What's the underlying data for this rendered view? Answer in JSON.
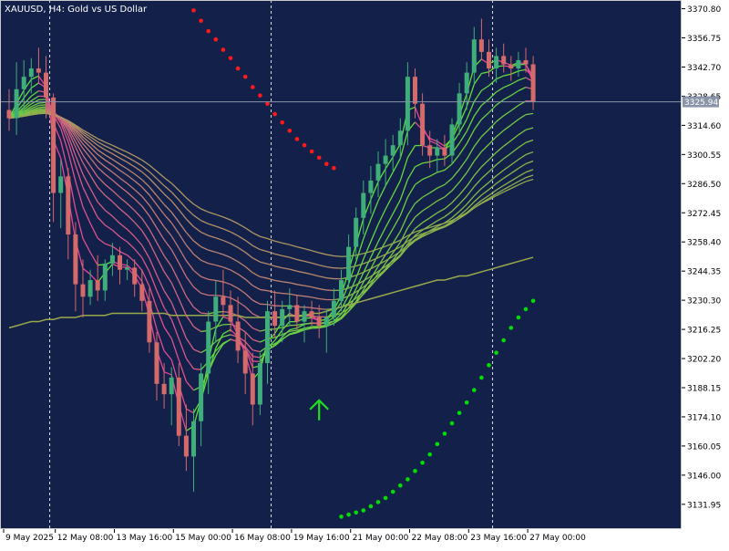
{
  "colors": {
    "background": "#13204a",
    "bull_candle": "#3fae7a",
    "bear_candle": "#d46a6a",
    "price_line": "#8a94a8",
    "buy_dots": "#00e000",
    "sell_dots": "#ff1a1a",
    "arrow": "#1fe01f",
    "ribbon_slow": "#9aa84c",
    "axis_text": "#ffffff"
  },
  "chart_data": {
    "type": "candlestick",
    "title": "XAUUSD, H4:  Gold vs US Dollar",
    "symbol": "XAUUSD",
    "timeframe": "H4",
    "description": "Gold vs US Dollar",
    "current_price": "3325.94",
    "ylim": [
      3120,
      3375
    ],
    "y_tick_labels": [
      "3370.80",
      "3356.75",
      "3342.70",
      "3328.65",
      "3314.60",
      "3300.55",
      "3286.50",
      "3272.45",
      "3258.40",
      "3244.35",
      "3230.30",
      "3216.25",
      "3202.20",
      "3188.15",
      "3174.10",
      "3160.05",
      "3146.00",
      "3131.95"
    ],
    "x_tick_labels": [
      "9 May 2025",
      "12 May 08:00",
      "13 May 16:00",
      "15 May 00:00",
      "16 May 08:00",
      "19 May 16:00",
      "21 May 00:00",
      "22 May 08:00",
      "23 May 16:00",
      "27 May 00:00"
    ],
    "x_ticks": [
      0,
      7,
      15,
      23,
      31,
      39,
      47,
      55,
      63,
      71
    ],
    "period_separators": [
      5.5,
      35.5,
      65.5
    ],
    "candles": [
      [
        3322,
        3332,
        3312,
        3318
      ],
      [
        3318,
        3345,
        3310,
        3332
      ],
      [
        3332,
        3346,
        3320,
        3338
      ],
      [
        3338,
        3347,
        3330,
        3342
      ],
      [
        3342,
        3352,
        3335,
        3340
      ],
      [
        3340,
        3348,
        3318,
        3328
      ],
      [
        3328,
        3330,
        3268,
        3282
      ],
      [
        3282,
        3298,
        3265,
        3290
      ],
      [
        3290,
        3294,
        3250,
        3262
      ],
      [
        3262,
        3268,
        3225,
        3238
      ],
      [
        3238,
        3250,
        3222,
        3232
      ],
      [
        3232,
        3245,
        3228,
        3240
      ],
      [
        3240,
        3252,
        3230,
        3235
      ],
      [
        3235,
        3250,
        3230,
        3248
      ],
      [
        3248,
        3258,
        3242,
        3252
      ],
      [
        3252,
        3256,
        3238,
        3245
      ],
      [
        3245,
        3250,
        3240,
        3246
      ],
      [
        3246,
        3250,
        3232,
        3238
      ],
      [
        3238,
        3245,
        3225,
        3230
      ],
      [
        3230,
        3236,
        3205,
        3210
      ],
      [
        3210,
        3215,
        3182,
        3190
      ],
      [
        3190,
        3200,
        3178,
        3185
      ],
      [
        3185,
        3198,
        3170,
        3193
      ],
      [
        3193,
        3200,
        3160,
        3165
      ],
      [
        3165,
        3180,
        3148,
        3155
      ],
      [
        3155,
        3178,
        3138,
        3172
      ],
      [
        3172,
        3200,
        3160,
        3195
      ],
      [
        3195,
        3225,
        3185,
        3220
      ],
      [
        3220,
        3240,
        3210,
        3232
      ],
      [
        3232,
        3245,
        3222,
        3228
      ],
      [
        3228,
        3235,
        3215,
        3220
      ],
      [
        3220,
        3232,
        3200,
        3206
      ],
      [
        3206,
        3215,
        3185,
        3195
      ],
      [
        3195,
        3205,
        3170,
        3180
      ],
      [
        3180,
        3205,
        3175,
        3200
      ],
      [
        3200,
        3230,
        3190,
        3225
      ],
      [
        3225,
        3235,
        3212,
        3218
      ],
      [
        3218,
        3230,
        3210,
        3226
      ],
      [
        3226,
        3236,
        3218,
        3228
      ],
      [
        3228,
        3233,
        3216,
        3220
      ],
      [
        3220,
        3228,
        3210,
        3225
      ],
      [
        3225,
        3230,
        3218,
        3222
      ],
      [
        3222,
        3228,
        3212,
        3218
      ],
      [
        3218,
        3226,
        3205,
        3222
      ],
      [
        3222,
        3236,
        3218,
        3230
      ],
      [
        3230,
        3245,
        3225,
        3240
      ],
      [
        3240,
        3262,
        3236,
        3256
      ],
      [
        3256,
        3275,
        3250,
        3270
      ],
      [
        3270,
        3288,
        3262,
        3282
      ],
      [
        3282,
        3295,
        3272,
        3288
      ],
      [
        3288,
        3302,
        3280,
        3296
      ],
      [
        3296,
        3308,
        3285,
        3300
      ],
      [
        3300,
        3310,
        3292,
        3305
      ],
      [
        3305,
        3318,
        3298,
        3312
      ],
      [
        3312,
        3345,
        3305,
        3338
      ],
      [
        3338,
        3342,
        3318,
        3325
      ],
      [
        3325,
        3330,
        3300,
        3305
      ],
      [
        3305,
        3312,
        3294,
        3300
      ],
      [
        3300,
        3308,
        3292,
        3304
      ],
      [
        3304,
        3310,
        3295,
        3300
      ],
      [
        3300,
        3318,
        3296,
        3315
      ],
      [
        3315,
        3335,
        3310,
        3330
      ],
      [
        3330,
        3345,
        3322,
        3340
      ],
      [
        3340,
        3362,
        3335,
        3356
      ],
      [
        3356,
        3366,
        3346,
        3350
      ],
      [
        3350,
        3356,
        3338,
        3342
      ],
      [
        3342,
        3352,
        3335,
        3348
      ],
      [
        3348,
        3354,
        3340,
        3344
      ],
      [
        3344,
        3348,
        3336,
        3342
      ],
      [
        3342,
        3350,
        3338,
        3346
      ],
      [
        3346,
        3352,
        3340,
        3344
      ],
      [
        3344,
        3348,
        3322,
        3326
      ]
    ],
    "ma_slow": [
      3217,
      3218,
      3219,
      3220,
      3220,
      3221,
      3221,
      3222,
      3222,
      3222,
      3223,
      3223,
      3223,
      3223,
      3224,
      3224,
      3224,
      3224,
      3224,
      3224,
      3224,
      3224,
      3223,
      3223,
      3223,
      3223,
      3223,
      3223,
      3223,
      3223,
      3223,
      3223,
      3222,
      3222,
      3222,
      3222,
      3222,
      3222,
      3223,
      3223,
      3223,
      3224,
      3224,
      3225,
      3226,
      3227,
      3228,
      3229,
      3230,
      3231,
      3232,
      3233,
      3234,
      3235,
      3236,
      3237,
      3238,
      3239,
      3240,
      3240,
      3241,
      3242,
      3242,
      3243,
      3244,
      3245,
      3246,
      3247,
      3248,
      3249,
      3250,
      3251
    ],
    "sar_sell": [
      [
        25,
        3370
      ],
      [
        26,
        3365
      ],
      [
        27,
        3360
      ],
      [
        28,
        3356
      ],
      [
        29,
        3351
      ],
      [
        30,
        3347
      ],
      [
        31,
        3342
      ],
      [
        32,
        3338
      ],
      [
        33,
        3333
      ],
      [
        34,
        3329
      ],
      [
        35,
        3325
      ],
      [
        36,
        3320
      ],
      [
        37,
        3316
      ],
      [
        38,
        3312
      ],
      [
        39,
        3308
      ],
      [
        40,
        3305
      ],
      [
        41,
        3302
      ],
      [
        42,
        3299
      ],
      [
        43,
        3296
      ],
      [
        44,
        3294
      ]
    ],
    "sar_buy": [
      [
        45,
        3126
      ],
      [
        46,
        3127
      ],
      [
        47,
        3128
      ],
      [
        48,
        3129
      ],
      [
        49,
        3131
      ],
      [
        50,
        3133
      ],
      [
        51,
        3135
      ],
      [
        52,
        3138
      ],
      [
        53,
        3141
      ],
      [
        54,
        3144
      ],
      [
        55,
        3148
      ],
      [
        56,
        3152
      ],
      [
        57,
        3156
      ],
      [
        58,
        3161
      ],
      [
        59,
        3166
      ],
      [
        60,
        3171
      ],
      [
        61,
        3176
      ],
      [
        62,
        3181
      ],
      [
        63,
        3187
      ],
      [
        64,
        3193
      ],
      [
        65,
        3199
      ],
      [
        66,
        3205
      ],
      [
        67,
        3211
      ],
      [
        68,
        3217
      ],
      [
        69,
        3222
      ],
      [
        70,
        3226
      ],
      [
        71,
        3230
      ]
    ],
    "buy_arrow_bar": 42
  }
}
